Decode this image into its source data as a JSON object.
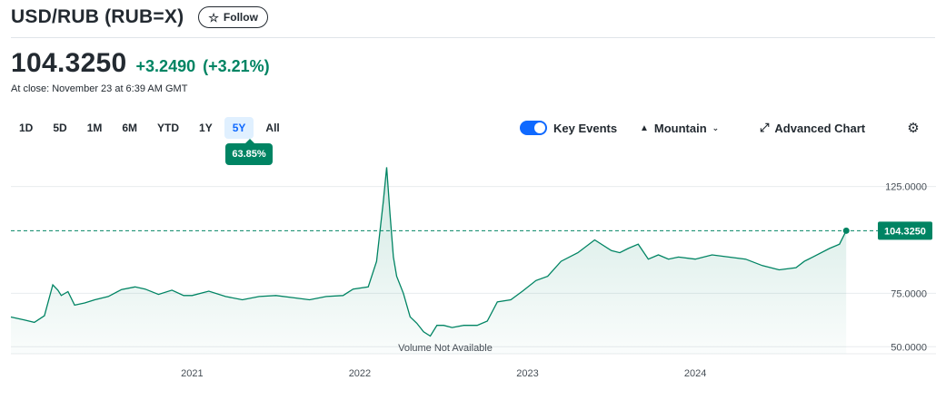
{
  "header": {
    "title": "USD/RUB (RUB=X)",
    "follow_label": "Follow",
    "follow_icon": "star-outline-icon"
  },
  "quote": {
    "price": "104.3250",
    "change": "+3.2490",
    "change_pct": "(+3.21%)",
    "close_time": "At close: November 23 at 6:39 AM GMT",
    "positive_color": "#008463"
  },
  "ranges": {
    "items": [
      "1D",
      "5D",
      "1M",
      "6M",
      "YTD",
      "1Y",
      "5Y",
      "All"
    ],
    "active": "5Y",
    "active_change": "63.85%"
  },
  "controls": {
    "key_events_label": "Key Events",
    "key_events_on": true,
    "chart_type_label": "Mountain",
    "advanced_label": "Advanced Chart"
  },
  "chart_data": {
    "type": "area",
    "title": "",
    "xlabel": "",
    "ylabel": "",
    "x_ticks": [
      "2021",
      "2022",
      "2023",
      "2024"
    ],
    "y_ticks": [
      "125.0000",
      "75.0000",
      "50.0000"
    ],
    "ylim": [
      48,
      138
    ],
    "xlim": [
      2019.92,
      2024.98
    ],
    "last_price_label": "104.3250",
    "last_price": 104.325,
    "volume_note": "Volume Not Available",
    "line_color": "#008463",
    "series": [
      {
        "x": [
          2019.92,
          2020.0,
          2020.06,
          2020.12,
          2020.17,
          2020.2,
          2020.22,
          2020.26,
          2020.3,
          2020.36,
          2020.42,
          2020.5,
          2020.58,
          2020.66,
          2020.72,
          2020.8,
          2020.88,
          2020.95,
          2021.0,
          2021.1,
          2021.2,
          2021.3,
          2021.4,
          2021.5,
          2021.6,
          2021.7,
          2021.8,
          2021.9,
          2021.96,
          2022.05,
          2022.1,
          2022.14,
          2022.16,
          2022.18,
          2022.2,
          2022.22,
          2022.26,
          2022.3,
          2022.34,
          2022.38,
          2022.42,
          2022.46,
          2022.5,
          2022.55,
          2022.62,
          2022.7,
          2022.76,
          2022.82,
          2022.9,
          2022.97,
          2023.05,
          2023.12,
          2023.2,
          2023.3,
          2023.4,
          2023.5,
          2023.55,
          2023.6,
          2023.66,
          2023.72,
          2023.78,
          2023.84,
          2023.9,
          2024.0,
          2024.1,
          2024.2,
          2024.3,
          2024.4,
          2024.5,
          2024.6,
          2024.65,
          2024.7,
          2024.8,
          2024.86,
          2024.9
        ],
        "y": [
          63.9,
          62.5,
          61.4,
          64.5,
          79.0,
          76.5,
          74.0,
          75.8,
          69.5,
          70.5,
          72.0,
          73.5,
          76.8,
          78.0,
          77.0,
          74.5,
          76.5,
          74.0,
          74.0,
          76.0,
          73.5,
          72.0,
          73.5,
          74.0,
          73.0,
          72.0,
          73.5,
          74.0,
          77.0,
          78.0,
          90.0,
          118.0,
          134.0,
          112.0,
          92.0,
          83.0,
          75.0,
          64.0,
          61.0,
          57.0,
          55.0,
          60.0,
          60.0,
          59.0,
          60.0,
          60.0,
          62.0,
          71.0,
          72.0,
          76.0,
          81.0,
          83.0,
          90.0,
          94.0,
          100.0,
          95.0,
          94.0,
          96.0,
          98.0,
          91.0,
          93.0,
          91.0,
          92.0,
          91.0,
          93.0,
          92.0,
          91.0,
          88.0,
          86.0,
          87.0,
          90.0,
          92.0,
          96.0,
          98.0,
          104.325
        ]
      }
    ]
  }
}
